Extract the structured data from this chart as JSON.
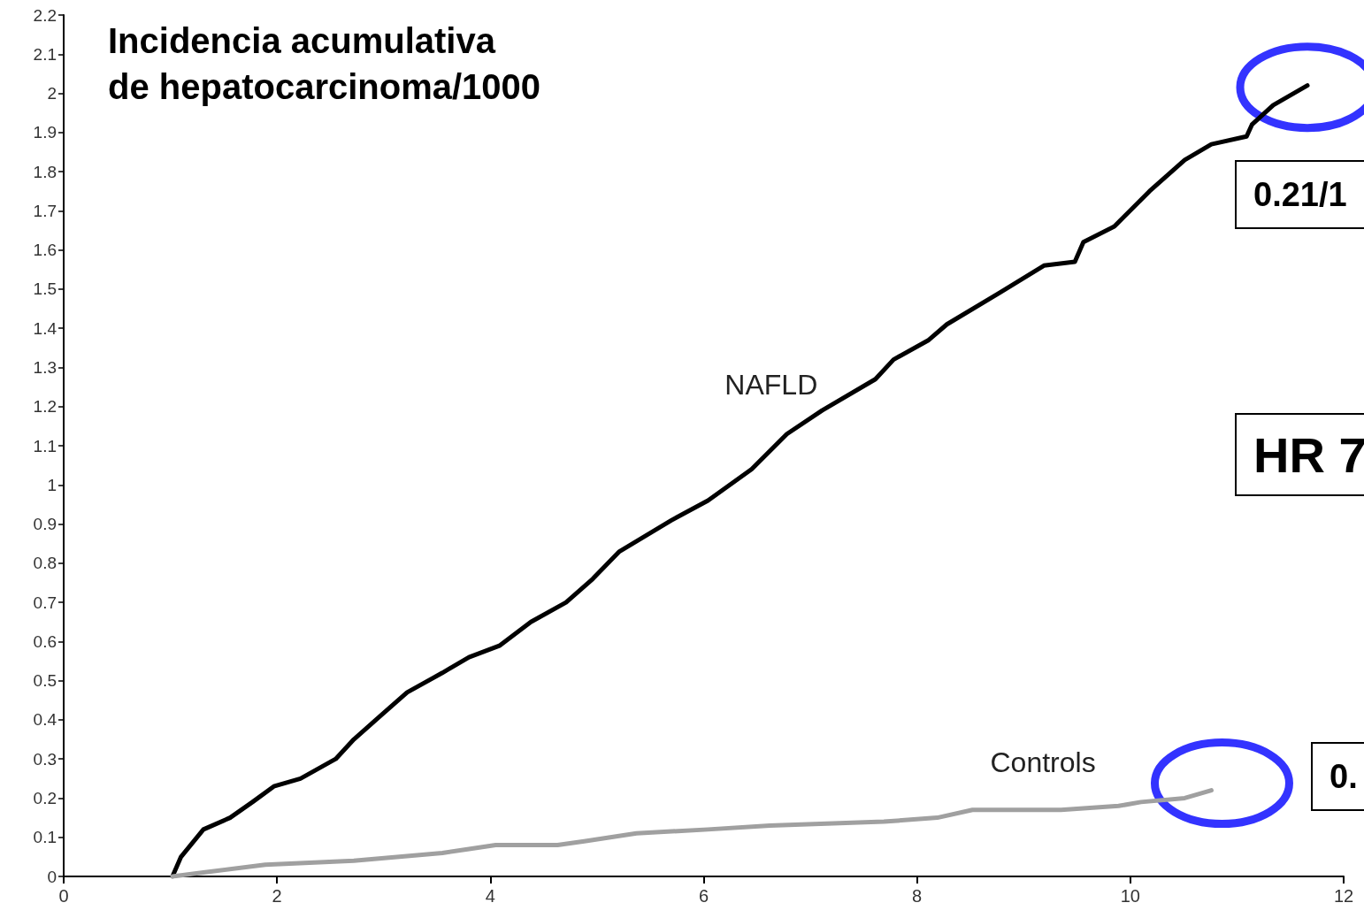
{
  "chart_data": {
    "type": "line",
    "title": "Incidencia acumulativa\nde hepatocarcinoma/1000",
    "series": [
      {
        "name": "NAFLD",
        "color": "#000000",
        "x": [
          1.02,
          1.1,
          1.31,
          1.56,
          1.77,
          1.97,
          2.22,
          2.55,
          2.72,
          2.97,
          3.22,
          3.55,
          3.8,
          4.09,
          4.38,
          4.71,
          4.96,
          5.21,
          5.7,
          6.04,
          6.45,
          6.78,
          7.11,
          7.61,
          7.78,
          8.11,
          8.28,
          8.77,
          9.19,
          9.48,
          9.56,
          9.85,
          10.18,
          10.51,
          10.76,
          11.09,
          11.14,
          11.34,
          11.66
        ],
        "values": [
          0,
          0.05,
          0.12,
          0.15,
          0.19,
          0.23,
          0.25,
          0.3,
          0.35,
          0.41,
          0.47,
          0.52,
          0.56,
          0.59,
          0.65,
          0.7,
          0.76,
          0.83,
          0.91,
          0.96,
          1.04,
          1.13,
          1.19,
          1.27,
          1.32,
          1.37,
          1.41,
          1.49,
          1.56,
          1.57,
          1.62,
          1.66,
          1.75,
          1.83,
          1.87,
          1.89,
          1.92,
          1.97,
          2.02
        ]
      },
      {
        "name": "Controls",
        "color": "#a0a0a0",
        "x": [
          1.02,
          1.31,
          1.89,
          2.72,
          3.55,
          3.8,
          4.05,
          4.63,
          4.88,
          5.37,
          6.04,
          6.62,
          7.69,
          8.19,
          8.52,
          9.35,
          9.89,
          10.1,
          10.51,
          10.76
        ],
        "values": [
          0,
          0.01,
          0.03,
          0.04,
          0.06,
          0.07,
          0.08,
          0.08,
          0.09,
          0.11,
          0.12,
          0.13,
          0.14,
          0.15,
          0.17,
          0.17,
          0.18,
          0.19,
          0.2,
          0.22
        ]
      }
    ],
    "annotations": [
      "0.21/1",
      "HR 7",
      "0."
    ],
    "xlim": [
      0,
      12
    ],
    "xticks": [
      0,
      2,
      4,
      6,
      8,
      10,
      12
    ],
    "ylim": [
      0,
      2.2
    ],
    "yticks": [
      0,
      0.1,
      0.2,
      0.3,
      0.4,
      0.5,
      0.6,
      0.7,
      0.8,
      0.9,
      1,
      1.1,
      1.2,
      1.3,
      1.4,
      1.5,
      1.6,
      1.7,
      1.8,
      1.9,
      2,
      2.1,
      2.2
    ],
    "grid": false,
    "legend": false,
    "marker": "none",
    "line_style": "solid"
  }
}
